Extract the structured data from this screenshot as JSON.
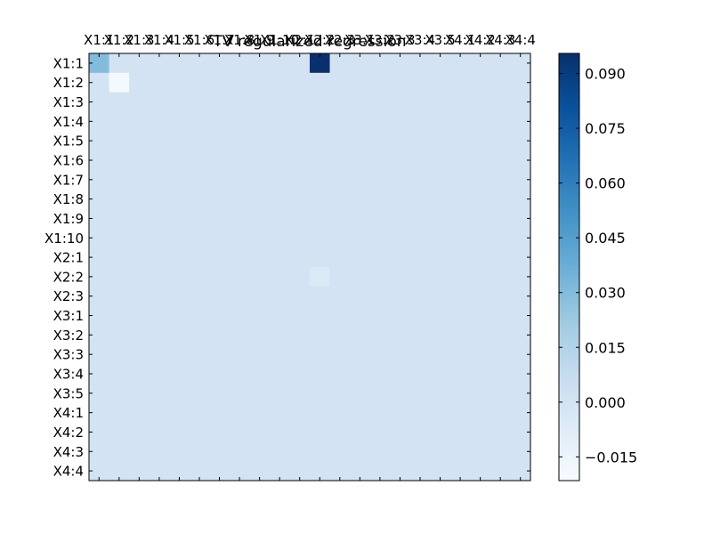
{
  "chart_data": {
    "type": "heatmap",
    "title": "TV regularized regression",
    "row_labels": [
      "X1:1",
      "X1:2",
      "X1:3",
      "X1:4",
      "X1:5",
      "X1:6",
      "X1:7",
      "X1:8",
      "X1:9",
      "X1:10",
      "X2:1",
      "X2:2",
      "X2:3",
      "X3:1",
      "X3:2",
      "X3:3",
      "X3:4",
      "X3:5",
      "X4:1",
      "X4:2",
      "X4:3",
      "X4:4"
    ],
    "col_labels": [
      "X1:1",
      "X1:2",
      "X1:3",
      "X1:4",
      "X1:5",
      "X1:6",
      "X1:7",
      "X1:8",
      "X1:9",
      "X1:10",
      "X2:1",
      "X2:2",
      "X2:3",
      "X3:1",
      "X3:2",
      "X3:3",
      "X3:4",
      "X3:5",
      "X4:1",
      "X4:2",
      "X4:3",
      "X4:4"
    ],
    "default_value": 0.0,
    "cells": [
      {
        "row": "X1:1",
        "col": "X1:1",
        "value": 0.03
      },
      {
        "row": "X1:1",
        "col": "X2:2",
        "value": 0.095
      },
      {
        "row": "X1:2",
        "col": "X1:2",
        "value": -0.02
      },
      {
        "row": "X2:2",
        "col": "X2:2",
        "value": -0.005
      }
    ],
    "colorbar": {
      "vmin": -0.0215,
      "vmax": 0.0955,
      "ticks": [
        -0.015,
        0.0,
        0.015,
        0.03,
        0.045,
        0.06,
        0.075,
        0.09
      ],
      "tick_labels": [
        "−0.015",
        "0.000",
        "0.015",
        "0.030",
        "0.045",
        "0.060",
        "0.075",
        "0.090"
      ],
      "colormap": "Blues",
      "colors": [
        "#f7fbff",
        "#deebf7",
        "#c6dbef",
        "#9ecae1",
        "#6baed6",
        "#4292c6",
        "#2171b5",
        "#08519c",
        "#08306b"
      ]
    },
    "grid": false
  }
}
